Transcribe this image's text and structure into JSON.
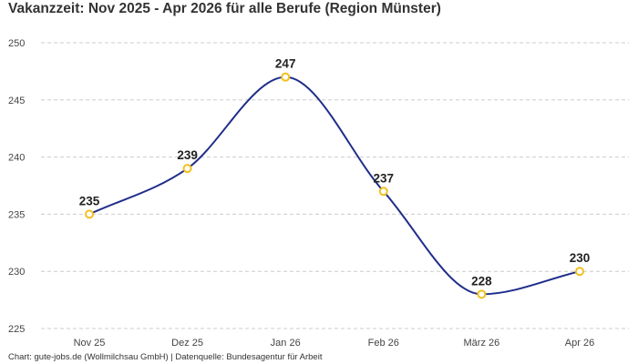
{
  "chart_data": {
    "type": "line",
    "title": "Vakanzzeit: Nov 2025 - Apr 2026 für alle Berufe (Region Münster)",
    "categories": [
      "Nov 25",
      "Dez 25",
      "Jan 26",
      "Feb 26",
      "März 26",
      "Apr 26"
    ],
    "series": [
      {
        "values": [
          235,
          239,
          247,
          237,
          228,
          230
        ]
      }
    ],
    "xlabel": "",
    "ylabel": "",
    "ylim": [
      225,
      250
    ],
    "yticks": [
      225,
      230,
      235,
      240,
      245,
      250
    ],
    "grid": true,
    "line_color": "#1f2d8a",
    "marker_color": "#f2c01e"
  },
  "footer": "Chart: gute-jobs.de (Wollmilchsau GmbH) | Datenquelle: Bundesagentur für Arbeit"
}
